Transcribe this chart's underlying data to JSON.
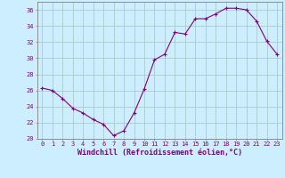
{
  "x": [
    0,
    1,
    2,
    3,
    4,
    5,
    6,
    7,
    8,
    9,
    10,
    11,
    12,
    13,
    14,
    15,
    16,
    17,
    18,
    19,
    20,
    21,
    22,
    23
  ],
  "y": [
    26.3,
    26.0,
    25.0,
    23.8,
    23.2,
    22.4,
    21.8,
    20.4,
    21.0,
    23.2,
    26.2,
    29.8,
    30.5,
    33.2,
    33.0,
    34.9,
    34.9,
    35.5,
    36.2,
    36.2,
    36.0,
    34.6,
    32.1,
    30.5
  ],
  "line_color": "#800080",
  "marker": "+",
  "marker_size": 3.5,
  "bg_color": "#cceeff",
  "grid_color": "#aacccc",
  "xlabel": "Windchill (Refroidissement éolien,°C)",
  "xlabel_color": "#800080",
  "tick_color": "#800080",
  "axis_color": "#808080",
  "ylim": [
    20,
    37
  ],
  "xlim": [
    -0.5,
    23.5
  ],
  "yticks": [
    20,
    22,
    24,
    26,
    28,
    30,
    32,
    34,
    36
  ],
  "xticks": [
    0,
    1,
    2,
    3,
    4,
    5,
    6,
    7,
    8,
    9,
    10,
    11,
    12,
    13,
    14,
    15,
    16,
    17,
    18,
    19,
    20,
    21,
    22,
    23
  ],
  "xtick_labels": [
    "0",
    "1",
    "2",
    "3",
    "4",
    "5",
    "6",
    "7",
    "8",
    "9",
    "10",
    "11",
    "12",
    "13",
    "14",
    "15",
    "16",
    "17",
    "18",
    "19",
    "20",
    "21",
    "22",
    "23"
  ],
  "ytick_labels": [
    "20",
    "22",
    "24",
    "26",
    "28",
    "30",
    "32",
    "34",
    "36"
  ],
  "tick_fontsize": 5,
  "xlabel_fontsize": 6,
  "xlabel_fontweight": "bold"
}
